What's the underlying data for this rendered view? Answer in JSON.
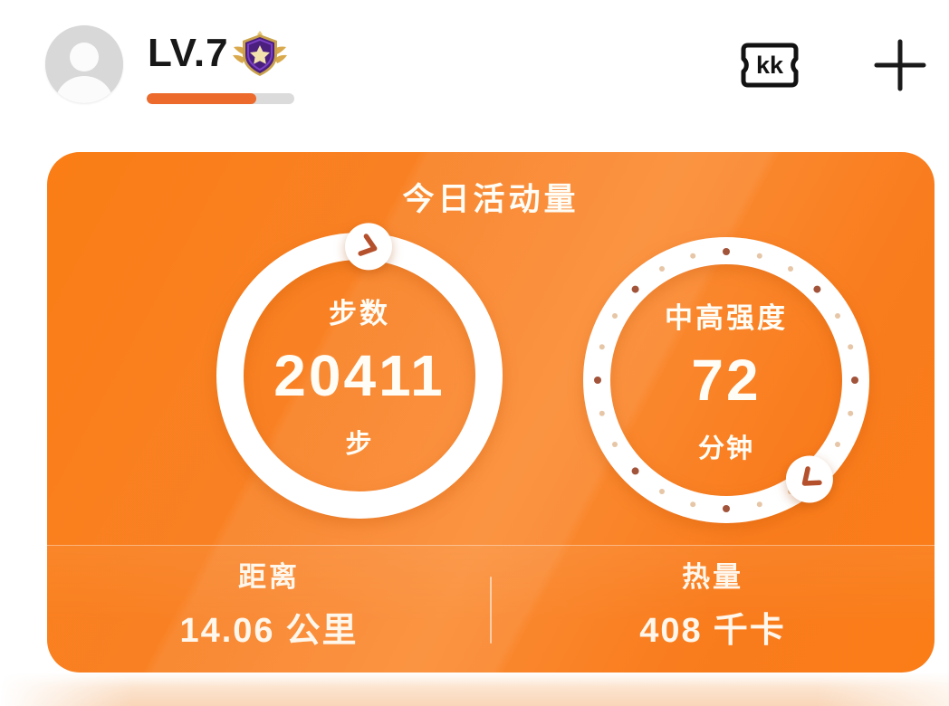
{
  "header": {
    "level_label": "LV.7",
    "level_progress_percent": 74,
    "ticket_label": "kk"
  },
  "card": {
    "title": "今日活动量",
    "steps": {
      "label": "步数",
      "value": "20411",
      "unit": "步"
    },
    "intensity": {
      "label": "中高强度",
      "value": "72",
      "unit": "分钟"
    },
    "distance": {
      "label": "距离",
      "value": "14.06",
      "unit": "公里"
    },
    "calories": {
      "label": "热量",
      "value": "408",
      "unit": "千卡"
    }
  },
  "colors": {
    "card_orange": "#F97C1D",
    "progress_orange": "#EC6A2C",
    "chevron": "#B5502C",
    "dot_dark": "#A2543A",
    "dot_light": "#E6C6A6",
    "ring_white": "#FFFFFF"
  }
}
